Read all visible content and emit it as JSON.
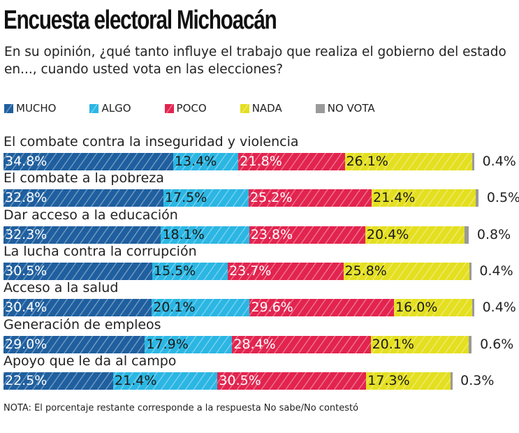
{
  "title": "Encuesta electoral Michoacán",
  "question": "En su opinión, ¿qué tanto influye el trabajo que realiza el gobierno del estado en..., cuando usted vota en las elecciones?",
  "note": "NOTA: El porcentaje restante corresponde a la respuesta No sabe/No contestó",
  "chart_data": {
    "type": "bar",
    "orientation": "horizontal-stacked",
    "legend_position": "top",
    "series": [
      {
        "name": "MUCHO",
        "color": "#1f5f9f",
        "values": [
          34.8,
          32.8,
          32.3,
          30.5,
          30.4,
          29.0,
          22.5
        ]
      },
      {
        "name": "ALGO",
        "color": "#2bb6e3",
        "values": [
          13.4,
          17.5,
          18.1,
          15.5,
          20.1,
          17.9,
          21.4
        ]
      },
      {
        "name": "POCO",
        "color": "#e2244f",
        "values": [
          21.8,
          25.2,
          23.8,
          23.7,
          29.6,
          28.4,
          30.5
        ]
      },
      {
        "name": "NADA",
        "color": "#e4df1f",
        "values": [
          26.1,
          21.4,
          20.4,
          25.8,
          16.0,
          20.1,
          17.3
        ]
      },
      {
        "name": "NO VOTA",
        "color": "#9a9a9a",
        "values": [
          0.4,
          0.5,
          0.8,
          0.4,
          0.4,
          0.6,
          0.3
        ]
      }
    ],
    "categories": [
      "El combate contra la inseguridad y violencia",
      "El combate a la pobreza",
      "Dar acceso a la educación",
      "La lucha contra la corrupción",
      "Acceso a la salud",
      "Generación de empleos",
      "Apoyo que le da al campo"
    ],
    "labels": [
      [
        "34.8%",
        "13.4%",
        "21.8%",
        "26.1%",
        "0.4%"
      ],
      [
        "32.8%",
        "17.5%",
        "25.2%",
        "21.4%",
        "0.5%"
      ],
      [
        "32.3%",
        "18.1%",
        "23.8%",
        "20.4%",
        "0.8%"
      ],
      [
        "30.5%",
        "15.5%",
        "23.7%",
        "25.8%",
        "0.4%"
      ],
      [
        "30.4%",
        "20.1%",
        "29.6%",
        "16.0%",
        "0.4%"
      ],
      [
        "29.0%",
        "17.9%",
        "28.4%",
        "20.1%",
        "0.6%"
      ],
      [
        "22.5%",
        "21.4%",
        "30.5%",
        "17.3%",
        "0.3%"
      ]
    ]
  }
}
